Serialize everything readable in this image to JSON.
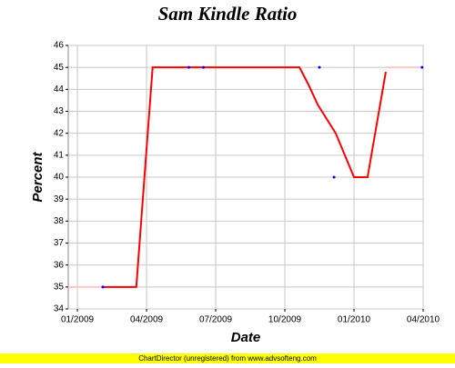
{
  "chart_data": {
    "type": "line",
    "title": "Sam Kindle Ratio",
    "xlabel": "Date",
    "ylabel": "Percent",
    "footer": "ChartDirector (unregistered) from www.advsofteng.com",
    "xlim": [
      2008.967,
      2010.25
    ],
    "ylim": [
      34,
      46
    ],
    "xticks": [
      {
        "value": 2009,
        "label": "01/2009"
      },
      {
        "value": 2009.25,
        "label": "04/2009"
      },
      {
        "value": 2009.5,
        "label": "07/2009"
      },
      {
        "value": 2009.75,
        "label": "10/2009"
      },
      {
        "value": 2010,
        "label": "01/2010"
      },
      {
        "value": 2010.25,
        "label": "04/2010"
      }
    ],
    "yticks": [
      34,
      35,
      36,
      37,
      38,
      39,
      40,
      41,
      42,
      43,
      44,
      45,
      46
    ],
    "grid": true,
    "series": [
      {
        "style": "line",
        "color": "#ff0000",
        "x": [
          2009.092,
          2009.213,
          2009.272,
          2009.803,
          2009.836,
          2009.869,
          2009.934,
          2009.967,
          2010.0,
          2010.049,
          2010.115
        ],
        "values": [
          35,
          35,
          45,
          45,
          44.2,
          43.3,
          42,
          41,
          40,
          40,
          44.8
        ]
      },
      {
        "style": "line",
        "color": "#ffc8c8",
        "x": [
          2008.967,
          2009.092,
          null,
          2010.115,
          2010.25
        ],
        "values": [
          35,
          35,
          null,
          45,
          45
        ]
      },
      {
        "style": "scatter",
        "color": "#0000ff",
        "x": [
          2009.092,
          2009.403,
          2009.456,
          2009.875,
          2009.928,
          2010.246
        ],
        "values": [
          35,
          45,
          45,
          45,
          40,
          45
        ]
      }
    ]
  }
}
